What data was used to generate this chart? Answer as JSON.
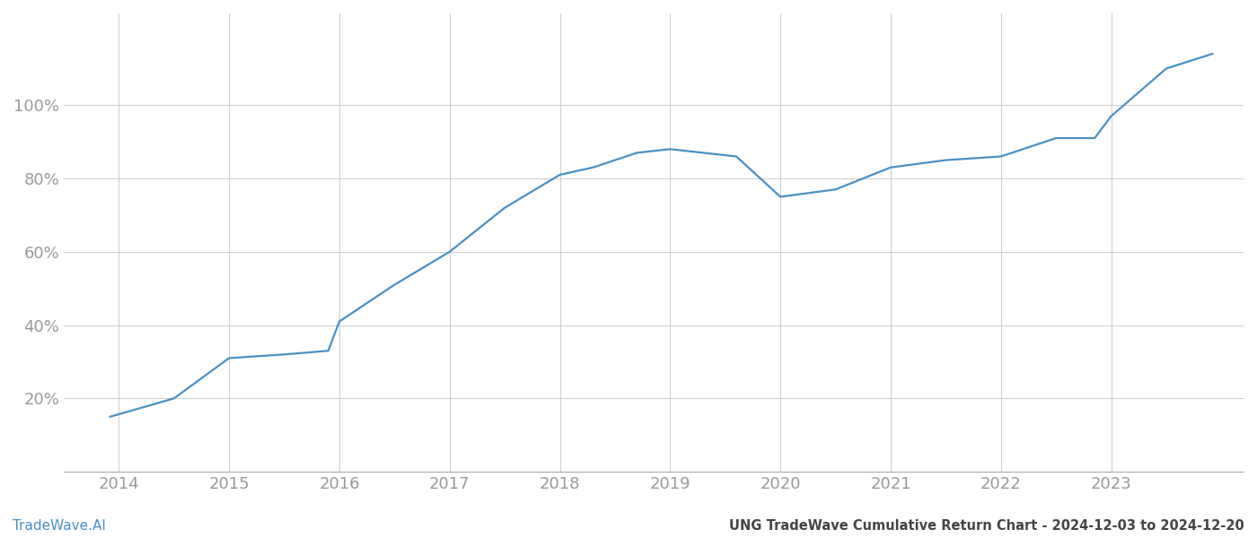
{
  "title": "UNG TradeWave Cumulative Return Chart - 2024-12-03 to 2024-12-20",
  "watermark": "TradeWave.AI",
  "line_color": "#4a90c4",
  "background_color": "#ffffff",
  "grid_color": "#cccccc",
  "x_years": [
    2014,
    2015,
    2016,
    2017,
    2018,
    2019,
    2020,
    2021,
    2022,
    2023
  ],
  "x_values": [
    2013.92,
    2014.5,
    2015.0,
    2015.5,
    2015.9,
    2016.0,
    2016.5,
    2017.0,
    2017.5,
    2018.0,
    2018.3,
    2018.7,
    2019.0,
    2019.3,
    2019.6,
    2020.0,
    2020.5,
    2021.0,
    2021.5,
    2022.0,
    2022.5,
    2022.85,
    2023.0,
    2023.5,
    2023.92
  ],
  "y_values": [
    15,
    20,
    31,
    32,
    33,
    41,
    51,
    60,
    72,
    81,
    83,
    87,
    88,
    87,
    86,
    75,
    77,
    83,
    85,
    86,
    91,
    91,
    97,
    110,
    114
  ],
  "ylim": [
    0,
    125
  ],
  "yticks": [
    20,
    40,
    60,
    80,
    100
  ],
  "xlim": [
    2013.5,
    2024.2
  ],
  "title_fontsize": 10.5,
  "watermark_fontsize": 11,
  "tick_fontsize": 13,
  "tick_color": "#999999",
  "line_width": 1.6,
  "spine_color": "#aaaaaa"
}
